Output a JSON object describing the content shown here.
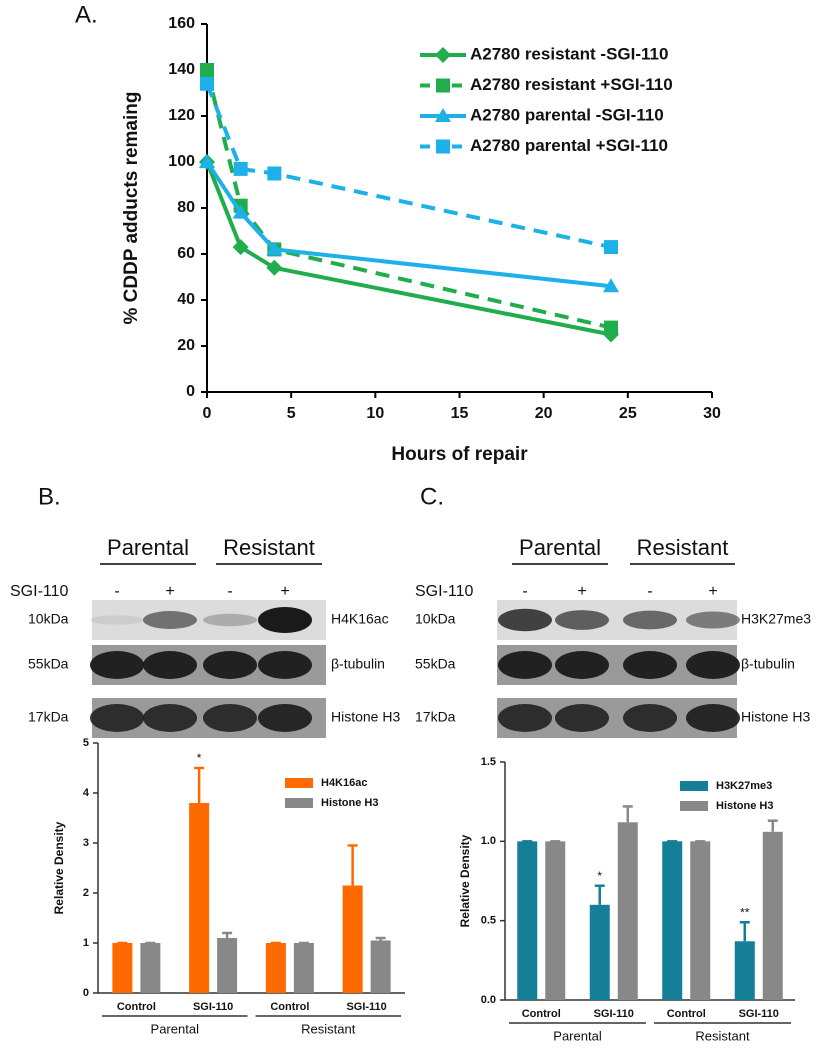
{
  "chart_data": [
    {
      "type": "line",
      "title": "A.",
      "xlabel": "Hours of repair",
      "ylabel": "% CDDP adducts remaing",
      "x": [
        0,
        2,
        4,
        24
      ],
      "series": [
        {
          "name": "A2780 resistant -SGI-110",
          "color": "#1fae4b",
          "marker": "diamond",
          "dashed": false,
          "values": [
            100,
            63,
            54,
            25
          ]
        },
        {
          "name": "A2780 resistant +SGI-110",
          "color": "#1fae4b",
          "marker": "square",
          "dashed": true,
          "values": [
            140,
            81,
            62,
            28
          ]
        },
        {
          "name": "A2780 parental -SGI-110",
          "color": "#1eb1e9",
          "marker": "triangle",
          "dashed": false,
          "values": [
            100,
            78,
            62,
            46
          ]
        },
        {
          "name": "A2780 parental +SGI-110",
          "color": "#1eb1e9",
          "marker": "square",
          "dashed": true,
          "values": [
            134,
            97,
            95,
            63
          ]
        }
      ],
      "xlim": [
        0,
        30
      ],
      "xticks": [
        0,
        5,
        10,
        15,
        20,
        25,
        30
      ],
      "ylim": [
        0,
        160
      ],
      "yticks": [
        0,
        20,
        40,
        60,
        80,
        100,
        120,
        140,
        160
      ],
      "legend": "upper right"
    },
    {
      "type": "bar",
      "ylabel": "Relative Density",
      "categories": [
        "Control",
        "SGI-110",
        "Control",
        "SGI-110"
      ],
      "groups": [
        "Parental",
        "Resistant"
      ],
      "series": [
        {
          "name": "H4K16ac",
          "color": "#ff6a00",
          "values": [
            1,
            3.8,
            1,
            2.15
          ],
          "errors": [
            0,
            0.7,
            0,
            0.8
          ]
        },
        {
          "name": "Histone H3",
          "color": "#888888",
          "values": [
            1,
            1.1,
            1,
            1.05
          ],
          "errors": [
            0,
            0.1,
            0,
            0.05
          ]
        }
      ],
      "ylim": [
        0,
        5
      ],
      "yticks": [
        0,
        1,
        2,
        3,
        4,
        5
      ],
      "annotations": [
        "*"
      ],
      "legend": "upper right"
    },
    {
      "type": "bar",
      "ylabel": "Relative Density",
      "categories": [
        "Control",
        "SGI-110",
        "Control",
        "SGI-110"
      ],
      "groups": [
        "Parental",
        "Resistant"
      ],
      "series": [
        {
          "name": "H3K27me3",
          "color": "#147f96",
          "values": [
            1,
            0.6,
            1,
            0.37
          ],
          "errors": [
            0,
            0.12,
            0,
            0.12
          ]
        },
        {
          "name": "Histone H3",
          "color": "#888888",
          "values": [
            1,
            1.12,
            1,
            1.06
          ],
          "errors": [
            0,
            0.1,
            0,
            0.07
          ]
        }
      ],
      "ylim": [
        0,
        1.5
      ],
      "yticks": [
        {
          "value": 0,
          "label": "0.0"
        },
        0.5,
        {
          "value": 1,
          "label": "1.0"
        },
        1.5
      ],
      "annotations": [
        "*",
        "**"
      ],
      "legend": "upper right"
    }
  ],
  "blots": [
    {
      "panel": "B.",
      "groups": [
        "Parental",
        "Resistant"
      ],
      "treatment": "SGI-110",
      "lanes": [
        "-",
        "+",
        "-",
        "+"
      ],
      "rows": [
        {
          "marker": "10kDa",
          "label": "H4K16ac"
        },
        {
          "marker": "55kDa",
          "label": "β-tubulin"
        },
        {
          "marker": "17kDa",
          "label": "Histone H3"
        }
      ]
    },
    {
      "panel": "C.",
      "groups": [
        "Parental",
        "Resistant"
      ],
      "treatment": "SGI-110",
      "lanes": [
        "-",
        "+",
        "-",
        "+"
      ],
      "rows": [
        {
          "marker": "10kDa",
          "label": "H3K27me3"
        },
        {
          "marker": "55kDa",
          "label": "β-tubulin"
        },
        {
          "marker": "17kDa",
          "label": "Histone H3"
        }
      ]
    }
  ]
}
